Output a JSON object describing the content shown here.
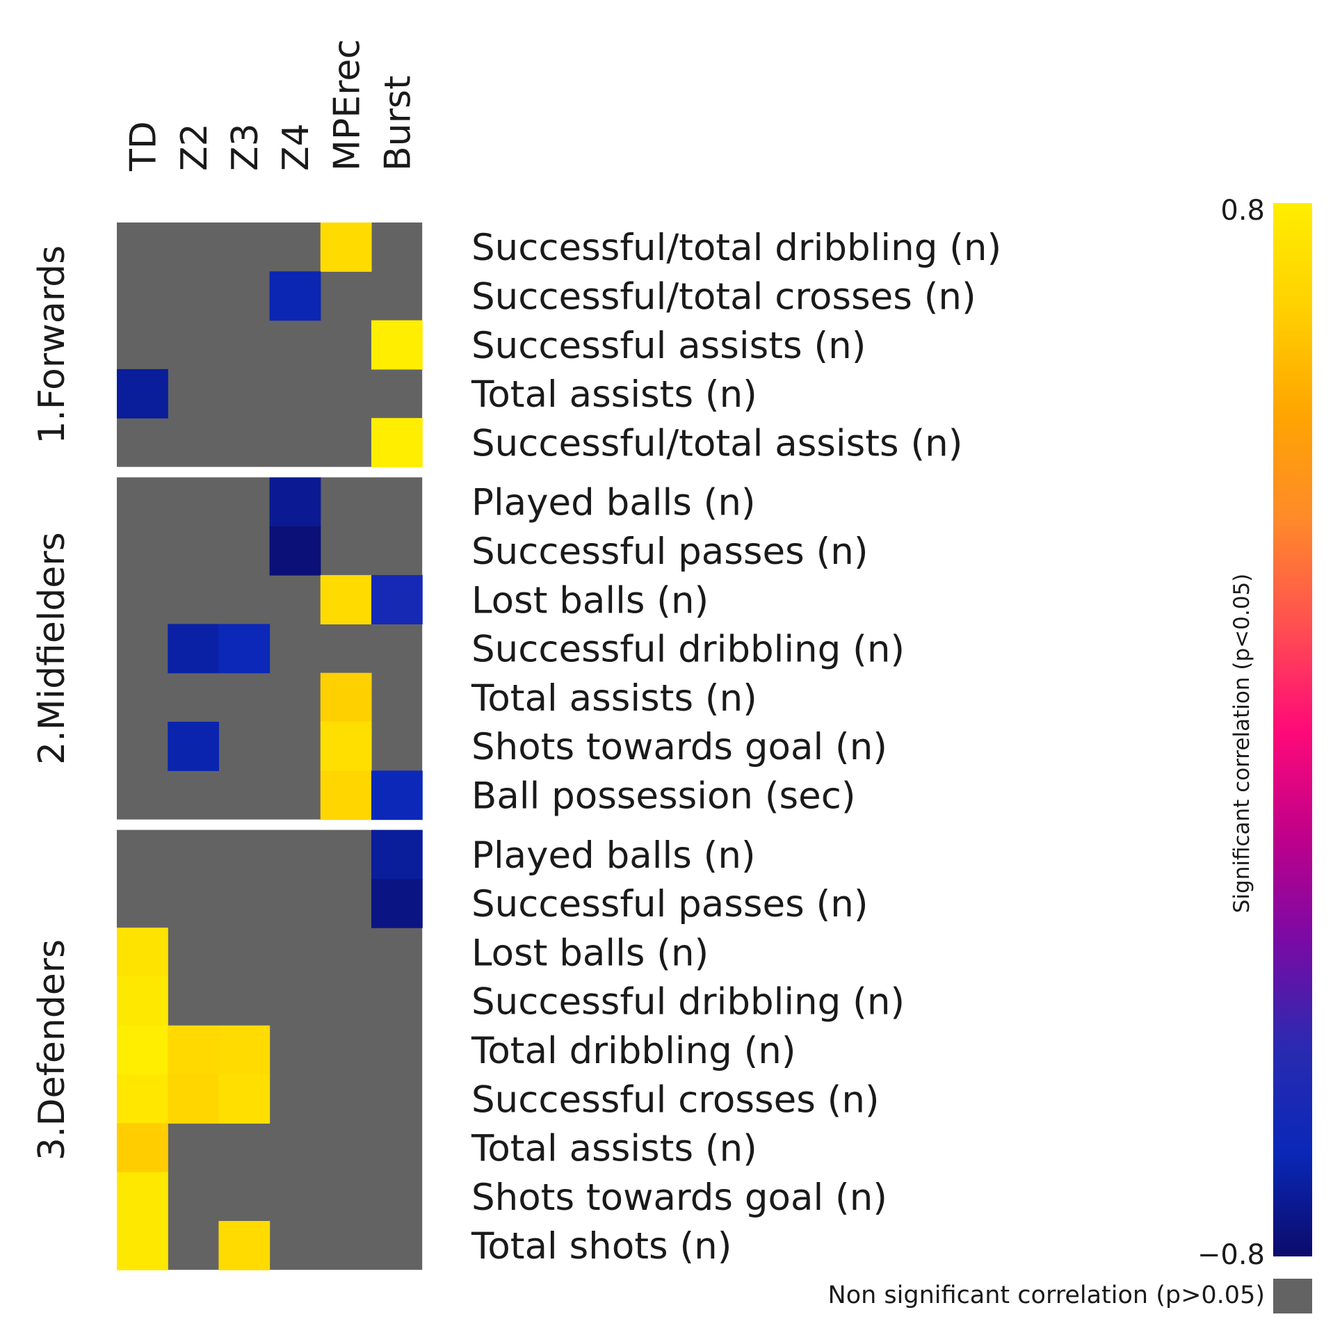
{
  "chart_data": {
    "type": "heatmap",
    "title": "",
    "columns": [
      "TD",
      "Z2",
      "Z3",
      "Z4",
      "MPErec",
      "Burst"
    ],
    "groups": [
      {
        "name": "1.Forwards",
        "rows": [
          {
            "label": "Successful/total dribbling (n)",
            "values": [
              null,
              null,
              null,
              null,
              0.7,
              null
            ]
          },
          {
            "label": "Successful/total crosses (n)",
            "values": [
              null,
              null,
              null,
              -0.65,
              null,
              null
            ]
          },
          {
            "label": "Successful assists (n)",
            "values": [
              null,
              null,
              null,
              null,
              null,
              0.8
            ]
          },
          {
            "label": "Total assists (n)",
            "values": [
              -0.7,
              null,
              null,
              null,
              null,
              null
            ]
          },
          {
            "label": "Successful/total assists (n)",
            "values": [
              null,
              null,
              null,
              null,
              null,
              0.8
            ]
          }
        ]
      },
      {
        "name": "2.Midfielders",
        "rows": [
          {
            "label": "Played balls (n)",
            "values": [
              null,
              null,
              null,
              -0.72,
              null,
              null
            ]
          },
          {
            "label": "Successful passes (n)",
            "values": [
              null,
              null,
              null,
              -0.77,
              null,
              null
            ]
          },
          {
            "label": "Lost balls (n)",
            "values": [
              null,
              null,
              null,
              null,
              0.7,
              -0.58
            ]
          },
          {
            "label": "Successful dribbling (n)",
            "values": [
              null,
              -0.68,
              -0.63,
              null,
              null,
              null
            ]
          },
          {
            "label": "Total assists (n)",
            "values": [
              null,
              null,
              null,
              null,
              0.64,
              null
            ]
          },
          {
            "label": "Shots towards goal (n)",
            "values": [
              null,
              -0.66,
              null,
              null,
              0.72,
              null
            ]
          },
          {
            "label": "Ball possession (sec)",
            "values": [
              null,
              null,
              null,
              null,
              0.67,
              -0.63
            ]
          }
        ]
      },
      {
        "name": "3.Defenders",
        "rows": [
          {
            "label": "Played balls (n)",
            "values": [
              null,
              null,
              null,
              null,
              null,
              -0.7
            ]
          },
          {
            "label": "Successful passes (n)",
            "values": [
              null,
              null,
              null,
              null,
              null,
              -0.75
            ]
          },
          {
            "label": "Lost balls (n)",
            "values": [
              0.74,
              null,
              null,
              null,
              null,
              null
            ]
          },
          {
            "label": "Successful dribbling (n)",
            "values": [
              0.77,
              null,
              null,
              null,
              null,
              null
            ]
          },
          {
            "label": "Total dribbling (n)",
            "values": [
              0.8,
              0.69,
              0.7,
              null,
              null,
              null
            ]
          },
          {
            "label": "Successful crosses (n)",
            "values": [
              0.76,
              0.67,
              0.72,
              null,
              null,
              null
            ]
          },
          {
            "label": "Total assists (n)",
            "values": [
              0.63,
              null,
              null,
              null,
              null,
              null
            ]
          },
          {
            "label": "Shots towards goal (n)",
            "values": [
              0.77,
              null,
              null,
              null,
              null,
              null
            ]
          },
          {
            "label": "Total shots (n)",
            "values": [
              0.77,
              null,
              0.7,
              null,
              null,
              null
            ]
          }
        ]
      }
    ],
    "colorbar": {
      "range": [
        -0.8,
        0.8
      ],
      "tick_labels": [
        "0.8",
        "−0.8"
      ],
      "title": "Significant correlation (p<0.05)",
      "nonsig_label": "Non significant correlation (p>0.05)",
      "nonsig_color": "#636363"
    },
    "colormap": [
      "#0b0b6b",
      "#0a28b8",
      "#2a2ab0",
      "#7a0aa5",
      "#c0008a",
      "#ff0a78",
      "#ff5050",
      "#ff8a2a",
      "#ffa500",
      "#ffd000",
      "#ffee00"
    ]
  }
}
